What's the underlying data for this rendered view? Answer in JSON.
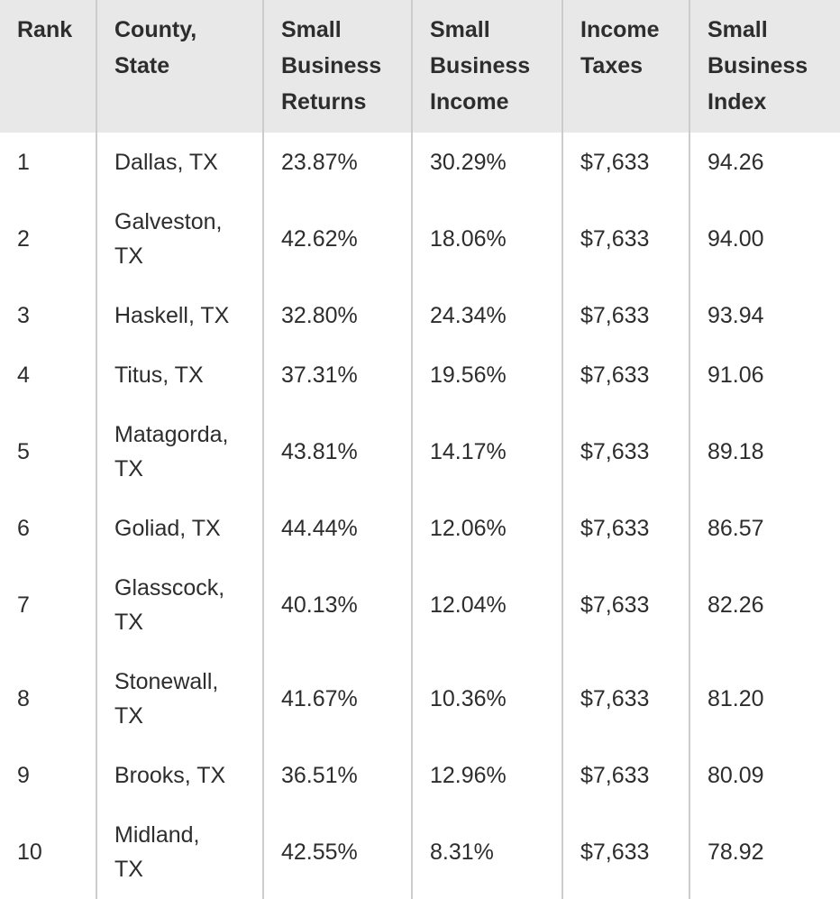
{
  "table": {
    "columns": [
      {
        "key": "rank",
        "label": "Rank"
      },
      {
        "key": "county",
        "label": "County,\nState"
      },
      {
        "key": "returns",
        "label": "Small\nBusiness\nReturns"
      },
      {
        "key": "income",
        "label": "Small\nBusiness\nIncome"
      },
      {
        "key": "taxes",
        "label": "Income\nTaxes"
      },
      {
        "key": "index",
        "label": "Small\nBusiness\nIndex"
      }
    ],
    "rows": [
      {
        "rank": "1",
        "county": "Dallas, TX",
        "returns": "23.87%",
        "income": "30.29%",
        "taxes": "$7,633",
        "index": "94.26"
      },
      {
        "rank": "2",
        "county": "Galveston,\nTX",
        "returns": "42.62%",
        "income": "18.06%",
        "taxes": "$7,633",
        "index": "94.00"
      },
      {
        "rank": "3",
        "county": "Haskell, TX",
        "returns": "32.80%",
        "income": "24.34%",
        "taxes": "$7,633",
        "index": "93.94"
      },
      {
        "rank": "4",
        "county": "Titus, TX",
        "returns": "37.31%",
        "income": "19.56%",
        "taxes": "$7,633",
        "index": "91.06"
      },
      {
        "rank": "5",
        "county": "Matagorda,\nTX",
        "returns": "43.81%",
        "income": "14.17%",
        "taxes": "$7,633",
        "index": "89.18"
      },
      {
        "rank": "6",
        "county": "Goliad, TX",
        "returns": "44.44%",
        "income": "12.06%",
        "taxes": "$7,633",
        "index": "86.57"
      },
      {
        "rank": "7",
        "county": "Glasscock,\nTX",
        "returns": "40.13%",
        "income": "12.04%",
        "taxes": "$7,633",
        "index": "82.26"
      },
      {
        "rank": "8",
        "county": "Stonewall,\nTX",
        "returns": "41.67%",
        "income": "10.36%",
        "taxes": "$7,633",
        "index": "81.20"
      },
      {
        "rank": "9",
        "county": "Brooks, TX",
        "returns": "36.51%",
        "income": "12.96%",
        "taxes": "$7,633",
        "index": "80.09"
      },
      {
        "rank": "10",
        "county": "Midland,\nTX",
        "returns": "42.55%",
        "income": "8.31%",
        "taxes": "$7,633",
        "index": "78.92"
      }
    ]
  },
  "chart_data": {
    "type": "table",
    "columns": [
      "Rank",
      "County, State",
      "Small Business Returns",
      "Small Business Income",
      "Income Taxes",
      "Small Business Index"
    ],
    "rows": [
      [
        1,
        "Dallas, TX",
        "23.87%",
        "30.29%",
        "$7,633",
        94.26
      ],
      [
        2,
        "Galveston, TX",
        "42.62%",
        "18.06%",
        "$7,633",
        94.0
      ],
      [
        3,
        "Haskell, TX",
        "32.80%",
        "24.34%",
        "$7,633",
        93.94
      ],
      [
        4,
        "Titus, TX",
        "37.31%",
        "19.56%",
        "$7,633",
        91.06
      ],
      [
        5,
        "Matagorda, TX",
        "43.81%",
        "14.17%",
        "$7,633",
        89.18
      ],
      [
        6,
        "Goliad, TX",
        "44.44%",
        "12.06%",
        "$7,633",
        86.57
      ],
      [
        7,
        "Glasscock, TX",
        "40.13%",
        "12.04%",
        "$7,633",
        82.26
      ],
      [
        8,
        "Stonewall, TX",
        "41.67%",
        "10.36%",
        "$7,633",
        81.2
      ],
      [
        9,
        "Brooks, TX",
        "36.51%",
        "12.96%",
        "$7,633",
        80.09
      ],
      [
        10,
        "Midland, TX",
        "42.55%",
        "8.31%",
        "$7,633",
        78.92
      ]
    ]
  },
  "colors": {
    "header_bg": "#e8e8e8",
    "border": "#cccccc",
    "text": "#2d2d2d",
    "row_bg": "#ffffff"
  }
}
